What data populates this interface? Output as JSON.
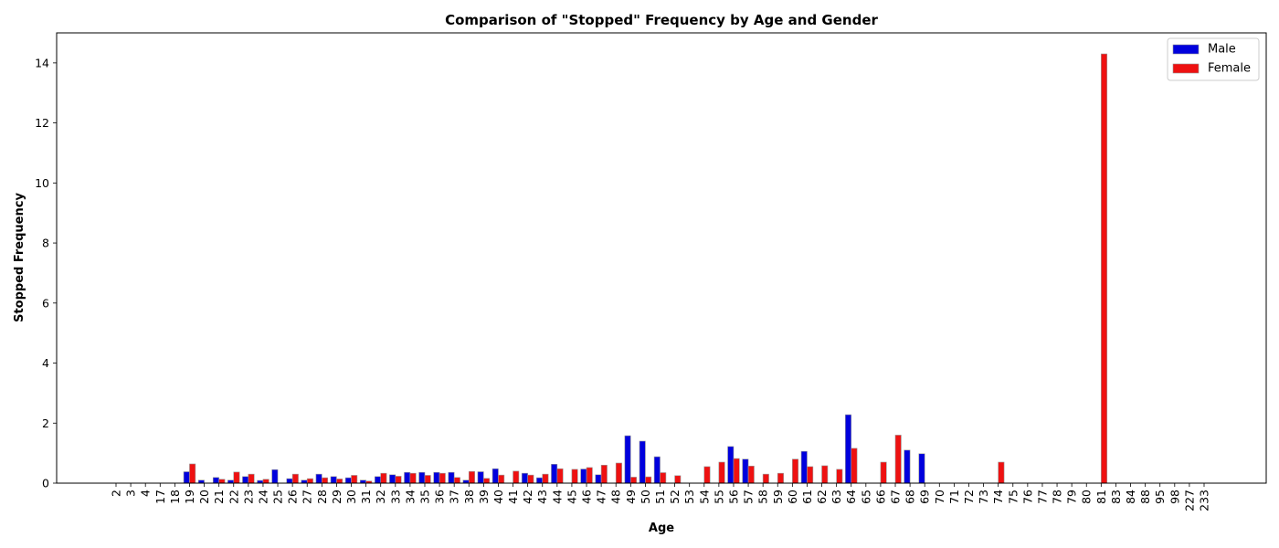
{
  "chart_data": {
    "type": "bar",
    "title": "Comparison of \"Stopped\" Frequency by Age and Gender",
    "xlabel": "Age",
    "ylabel": "Stopped Frequency",
    "ylim": [
      0,
      15
    ],
    "yticks": [
      0,
      2,
      4,
      6,
      8,
      10,
      12,
      14
    ],
    "grid": false,
    "legend_position": "top-right",
    "categories": [
      "2",
      "3",
      "4",
      "17",
      "18",
      "19",
      "20",
      "21",
      "22",
      "23",
      "24",
      "25",
      "26",
      "27",
      "28",
      "29",
      "30",
      "31",
      "32",
      "33",
      "34",
      "35",
      "36",
      "37",
      "38",
      "39",
      "40",
      "41",
      "42",
      "43",
      "44",
      "45",
      "46",
      "47",
      "48",
      "49",
      "50",
      "51",
      "52",
      "53",
      "54",
      "55",
      "56",
      "57",
      "58",
      "59",
      "60",
      "61",
      "62",
      "63",
      "64",
      "65",
      "66",
      "67",
      "68",
      "69",
      "70",
      "71",
      "72",
      "73",
      "74",
      "75",
      "76",
      "77",
      "78",
      "79",
      "80",
      "81",
      "83",
      "84",
      "88",
      "95",
      "98",
      "227",
      "233"
    ],
    "series": [
      {
        "name": "Male",
        "color": "#0000dd",
        "values": [
          0,
          0,
          0,
          0,
          0,
          0.38,
          0.1,
          0.19,
          0.1,
          0.22,
          0.09,
          0.45,
          0.15,
          0.1,
          0.3,
          0.22,
          0.18,
          0.1,
          0.22,
          0.28,
          0.36,
          0.36,
          0.36,
          0.36,
          0.1,
          0.38,
          0.48,
          0,
          0.33,
          0.18,
          0.63,
          0,
          0.47,
          0.28,
          0,
          1.58,
          1.4,
          0.88,
          0,
          0,
          0,
          0,
          1.22,
          0.8,
          0,
          0,
          0,
          1.06,
          0,
          0,
          2.28,
          0,
          0,
          0,
          1.1,
          0.98,
          0,
          0,
          0,
          0,
          0,
          0,
          0,
          0,
          0,
          0,
          0,
          0,
          0,
          0,
          0,
          0,
          0,
          0,
          0
        ]
      },
      {
        "name": "Female",
        "color": "#ee1111",
        "values": [
          0,
          0,
          0,
          0,
          0,
          0.64,
          0,
          0.13,
          0.37,
          0.3,
          0.13,
          0,
          0.3,
          0.15,
          0.18,
          0.14,
          0.26,
          0.07,
          0.33,
          0.23,
          0.33,
          0.26,
          0.33,
          0.19,
          0.39,
          0.16,
          0.27,
          0.4,
          0.27,
          0.3,
          0.48,
          0.46,
          0.52,
          0.6,
          0.67,
          0.2,
          0.21,
          0.35,
          0.25,
          0,
          0.55,
          0.7,
          0.82,
          0.57,
          0.3,
          0.33,
          0.8,
          0.55,
          0.58,
          0.46,
          1.16,
          0,
          0.7,
          1.6,
          0,
          0,
          0,
          0,
          0,
          0,
          0.7,
          0,
          0,
          0,
          0,
          0,
          0,
          14.3,
          0,
          0,
          0,
          0,
          0,
          0,
          0
        ]
      }
    ]
  }
}
